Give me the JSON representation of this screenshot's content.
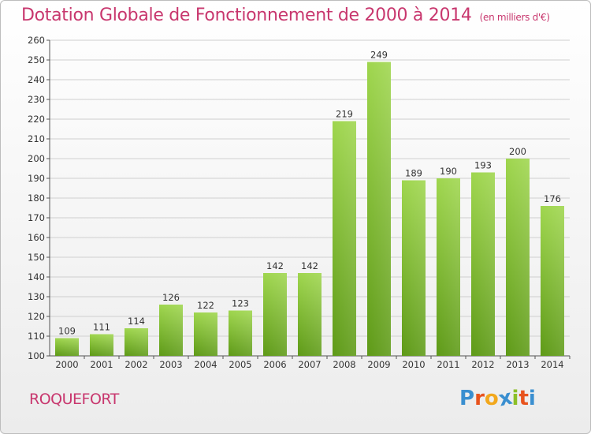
{
  "title": "Dotation Globale de Fonctionnement de 2000 à 2014",
  "subtitle": "(en milliers d'€)",
  "commune": "ROQUEFORT",
  "logo": {
    "letters": [
      "P",
      "r",
      "o",
      "x",
      "i",
      "t",
      "i"
    ],
    "colors": [
      "#3a8fd0",
      "#e8531d",
      "#f2a81d",
      "#3a8fd0",
      "#8cbf26",
      "#e8531d",
      "#3a8fd0"
    ]
  },
  "colors": {
    "title": "#c8376e",
    "bar_light": "#9fd64e",
    "bar_dark": "#5e9a17",
    "grid": "#cfcfcf"
  },
  "chart_data": {
    "type": "bar",
    "categories": [
      "2000",
      "2001",
      "2002",
      "2003",
      "2004",
      "2005",
      "2006",
      "2007",
      "2008",
      "2009",
      "2010",
      "2011",
      "2012",
      "2013",
      "2014"
    ],
    "values": [
      109,
      111,
      114,
      126,
      122,
      123,
      142,
      142,
      219,
      249,
      189,
      190,
      193,
      200,
      176
    ],
    "ylim": [
      100,
      260
    ],
    "yticks": [
      100,
      110,
      120,
      130,
      140,
      150,
      160,
      170,
      180,
      190,
      200,
      210,
      220,
      230,
      240,
      250,
      260
    ],
    "grid": true
  }
}
